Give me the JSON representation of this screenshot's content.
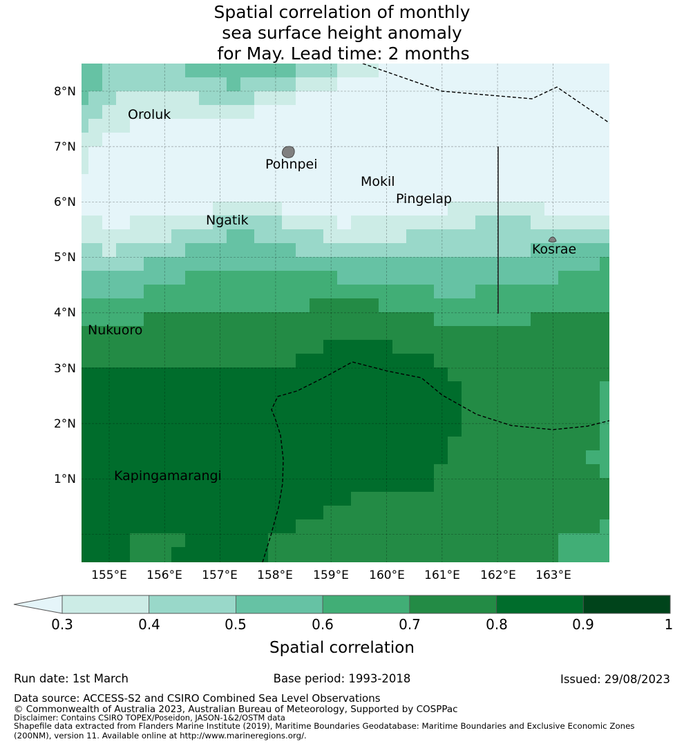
{
  "title": {
    "line1": "Spatial correlation of monthly",
    "line2": "sea surface height anomaly",
    "line3": "for May. Lead time: 2 months"
  },
  "map": {
    "lon_ticks": [
      "155°E",
      "156°E",
      "157°E",
      "158°E",
      "159°E",
      "160°E",
      "161°E",
      "162°E",
      "163°E"
    ],
    "lat_ticks": [
      "8°N",
      "7°N",
      "6°N",
      "5°N",
      "4°N",
      "3°N",
      "2°N",
      "1°N"
    ],
    "places": [
      {
        "name": "Oroluk"
      },
      {
        "name": "Pohnpei"
      },
      {
        "name": "Mokil"
      },
      {
        "name": "Pingelap"
      },
      {
        "name": "Ngatik"
      },
      {
        "name": "Kosrae"
      },
      {
        "name": "Nukuoro"
      },
      {
        "name": "Kapingamarangi"
      }
    ],
    "level_colors": [
      "#e5f5f9",
      "#ccece6",
      "#99d8c9",
      "#66c2a4",
      "#41ae76",
      "#238b45",
      "#006d2c",
      "#00441b"
    ],
    "rows_rle": [
      [
        [
          3,
          2
        ],
        [
          2,
          6
        ],
        [
          3,
          8
        ],
        [
          2,
          3
        ],
        [
          1,
          3
        ],
        [
          0,
          17
        ]
      ],
      [
        [
          3,
          2
        ],
        [
          2,
          9
        ],
        [
          3,
          1
        ],
        [
          2,
          4
        ],
        [
          1,
          3
        ],
        [
          0,
          20
        ]
      ],
      [
        [
          3,
          1
        ],
        [
          2,
          2
        ],
        [
          1,
          6
        ],
        [
          2,
          4
        ],
        [
          1,
          3
        ],
        [
          0,
          23
        ]
      ],
      [
        [
          2,
          2
        ],
        [
          1,
          11
        ],
        [
          0,
          26
        ]
      ],
      [
        [
          2,
          1
        ],
        [
          1,
          3
        ],
        [
          0,
          35
        ]
      ],
      [
        [
          1,
          2
        ],
        [
          0,
          37
        ]
      ],
      [
        [
          1,
          1
        ],
        [
          0,
          38
        ]
      ],
      [
        [
          1,
          1
        ],
        [
          0,
          38
        ]
      ],
      [
        [
          0,
          39
        ]
      ],
      [
        [
          0,
          39
        ]
      ],
      [
        [
          0,
          10
        ],
        [
          1,
          5
        ],
        [
          0,
          12
        ],
        [
          1,
          7
        ],
        [
          0,
          5
        ]
      ],
      [
        [
          1,
          2
        ],
        [
          0,
          2
        ],
        [
          1,
          6
        ],
        [
          2,
          5
        ],
        [
          1,
          4
        ],
        [
          0,
          1
        ],
        [
          1,
          9
        ],
        [
          2,
          4
        ],
        [
          1,
          6
        ]
      ],
      [
        [
          1,
          7
        ],
        [
          2,
          4
        ],
        [
          3,
          2
        ],
        [
          2,
          5
        ],
        [
          1,
          1
        ],
        [
          1,
          5
        ],
        [
          2,
          15
        ]
      ],
      [
        [
          2,
          2
        ],
        [
          1,
          1
        ],
        [
          2,
          5
        ],
        [
          3,
          8
        ],
        [
          2,
          17
        ],
        [
          3,
          6
        ]
      ],
      [
        [
          2,
          5
        ],
        [
          3,
          33
        ],
        [
          4,
          1
        ]
      ],
      [
        [
          3,
          8
        ],
        [
          4,
          11
        ],
        [
          3,
          16
        ],
        [
          4,
          4
        ]
      ],
      [
        [
          3,
          5
        ],
        [
          4,
          21
        ],
        [
          3,
          3
        ],
        [
          4,
          10
        ]
      ],
      [
        [
          4,
          17
        ],
        [
          5,
          5
        ],
        [
          4,
          17
        ]
      ],
      [
        [
          4,
          5
        ],
        [
          5,
          21
        ],
        [
          4,
          7
        ],
        [
          5,
          6
        ]
      ],
      [
        [
          5,
          39
        ]
      ],
      [
        [
          5,
          18
        ],
        [
          6,
          5
        ],
        [
          5,
          16
        ]
      ],
      [
        [
          5,
          16
        ],
        [
          6,
          10
        ],
        [
          5,
          13
        ]
      ],
      [
        [
          6,
          27
        ],
        [
          5,
          12
        ]
      ],
      [
        [
          6,
          28
        ],
        [
          5,
          10
        ],
        [
          4,
          1
        ]
      ],
      [
        [
          6,
          28
        ],
        [
          5,
          10
        ],
        [
          4,
          1
        ]
      ],
      [
        [
          6,
          28
        ],
        [
          5,
          10
        ],
        [
          4,
          1
        ]
      ],
      [
        [
          6,
          28
        ],
        [
          5,
          10
        ],
        [
          4,
          1
        ]
      ],
      [
        [
          6,
          27
        ],
        [
          5,
          11
        ],
        [
          4,
          1
        ]
      ],
      [
        [
          6,
          27
        ],
        [
          5,
          10
        ],
        [
          4,
          2
        ]
      ],
      [
        [
          6,
          26
        ],
        [
          5,
          12
        ],
        [
          4,
          1
        ]
      ],
      [
        [
          6,
          26
        ],
        [
          5,
          13
        ]
      ],
      [
        [
          6,
          20
        ],
        [
          5,
          19
        ]
      ],
      [
        [
          6,
          18
        ],
        [
          5,
          21
        ]
      ],
      [
        [
          6,
          16
        ],
        [
          5,
          22
        ],
        [
          4,
          1
        ]
      ],
      [
        [
          6,
          4
        ],
        [
          5,
          4
        ],
        [
          6,
          6
        ],
        [
          5,
          21
        ],
        [
          4,
          4
        ]
      ],
      [
        [
          6,
          4
        ],
        [
          5,
          3
        ],
        [
          6,
          7
        ],
        [
          5,
          21
        ],
        [
          4,
          4
        ]
      ]
    ]
  },
  "colorbar": {
    "ticks": [
      "0.3",
      "0.4",
      "0.5",
      "0.6",
      "0.7",
      "0.8",
      "0.9",
      "1"
    ],
    "label": "Spatial correlation",
    "colors": [
      "#ccece6",
      "#99d8c9",
      "#66c2a4",
      "#41ae76",
      "#238b45",
      "#006d2c",
      "#00441b"
    ],
    "extend_color": "#e5f5f9"
  },
  "footer": {
    "run_date": "Run date: 1st March",
    "base_period": "Base period: 1993-2018",
    "issued": "Issued: 29/08/2023",
    "data_source": "Data source: ACCESS-S2 and CSIRO Combined Sea Level Observations",
    "copyright": "© Commonwealth of Australia 2023, Australian Bureau of Meteorology, Supported by COSPPac",
    "disclaimer": "Disclaimer: Contains CSIRO TOPEX/Poseidon, JASON-1&2/OSTM data",
    "shapefile_1": "Shapefile data extracted from Flanders Marine Institute (2019), Maritime Boundaries Geodatabase: Maritime Boundaries and Exclusive Economic Zones",
    "shapefile_2": "(200NM), version 11. Available online at http://www.marineregions.org/."
  }
}
